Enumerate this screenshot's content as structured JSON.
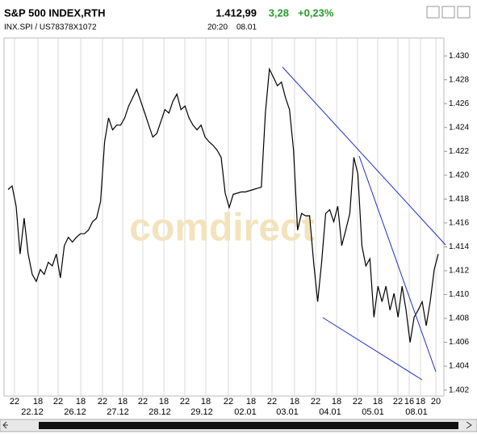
{
  "chart_data": {
    "type": "line",
    "title": "S&P 500 INDEX,RTH",
    "subtitle": "INX.SPI / US78378X1072",
    "last": "1.412,99",
    "change": "3,28",
    "change_pct": "+0,23%",
    "time": "20:20",
    "date": "08.01",
    "watermark": "comdirect",
    "grid": true,
    "color": "#000000",
    "trend_color": "#2030c0",
    "xtick_labels": [
      "22",
      "18",
      "22",
      "18",
      "22",
      "18",
      "22",
      "18",
      "22",
      "18",
      "22",
      "18",
      "22",
      "18",
      "22",
      "18",
      "22",
      "18",
      "22",
      "16",
      "18",
      "20"
    ],
    "date_labels": [
      "22.12",
      "26.12",
      "27.12",
      "28.12",
      "29.12",
      "02.01",
      "03.01",
      "04.01",
      "05.01",
      "08.01"
    ],
    "ylim": [
      1401.5,
      1431.5
    ],
    "yticks": [
      {
        "value": 1402,
        "label": "1.402"
      },
      {
        "value": 1404,
        "label": "1.404"
      },
      {
        "value": 1406,
        "label": "1.406"
      },
      {
        "value": 1408,
        "label": "1.408"
      },
      {
        "value": 1410,
        "label": "1.410"
      },
      {
        "value": 1412,
        "label": "1.412"
      },
      {
        "value": 1414,
        "label": "1.414"
      },
      {
        "value": 1416,
        "label": "1.416"
      },
      {
        "value": 1418,
        "label": "1.418"
      },
      {
        "value": 1420,
        "label": "1.420"
      },
      {
        "value": 1422,
        "label": "1.422"
      },
      {
        "value": 1424,
        "label": "1.424"
      },
      {
        "value": 1426,
        "label": "1.426"
      },
      {
        "value": 1428,
        "label": "1.428"
      },
      {
        "value": 1430,
        "label": "1.430"
      }
    ],
    "values": [
      1418.8,
      1419.1,
      1417.4,
      1413.4,
      1416.4,
      1413.4,
      1411.7,
      1411.1,
      1412.1,
      1411.7,
      1412.7,
      1412.4,
      1413.4,
      1411.4,
      1414.1,
      1414.8,
      1414.4,
      1414.8,
      1415.1,
      1415.1,
      1415.4,
      1416.1,
      1416.4,
      1417.8,
      1422.8,
      1424.8,
      1423.8,
      1424.2,
      1424.2,
      1424.8,
      1425.8,
      1426.5,
      1427.2,
      1426.2,
      1425.2,
      1424.2,
      1423.2,
      1423.5,
      1424.5,
      1425.5,
      1425.2,
      1426.2,
      1426.8,
      1425.5,
      1425.8,
      1424.8,
      1424.2,
      1423.8,
      1424.2,
      1423.2,
      1422.8,
      1422.5,
      1422.1,
      1421.5,
      1418.5,
      1417.3,
      1418.4,
      1418.5,
      1418.6,
      1418.6,
      1418.7,
      1418.8,
      1418.9,
      1419.0,
      1425.2,
      1428.9,
      1428.2,
      1427.5,
      1427.8,
      1426.5,
      1425.5,
      1422.1,
      1415.4,
      1416.8,
      1416.6,
      1416.6,
      1412.7,
      1409.4,
      1412.7,
      1416.8,
      1417.1,
      1416.1,
      1417.4,
      1414.1,
      1415.4,
      1416.8,
      1421.5,
      1420.1,
      1414.1,
      1412.4,
      1413.0,
      1408.1,
      1410.7,
      1409.4,
      1410.7,
      1408.7,
      1410.1,
      1408.1,
      1410.7,
      1408.7,
      1406.0,
      1408.1,
      1408.7,
      1409.4,
      1407.4,
      1409.4,
      1412.1,
      1413.4
    ]
  }
}
